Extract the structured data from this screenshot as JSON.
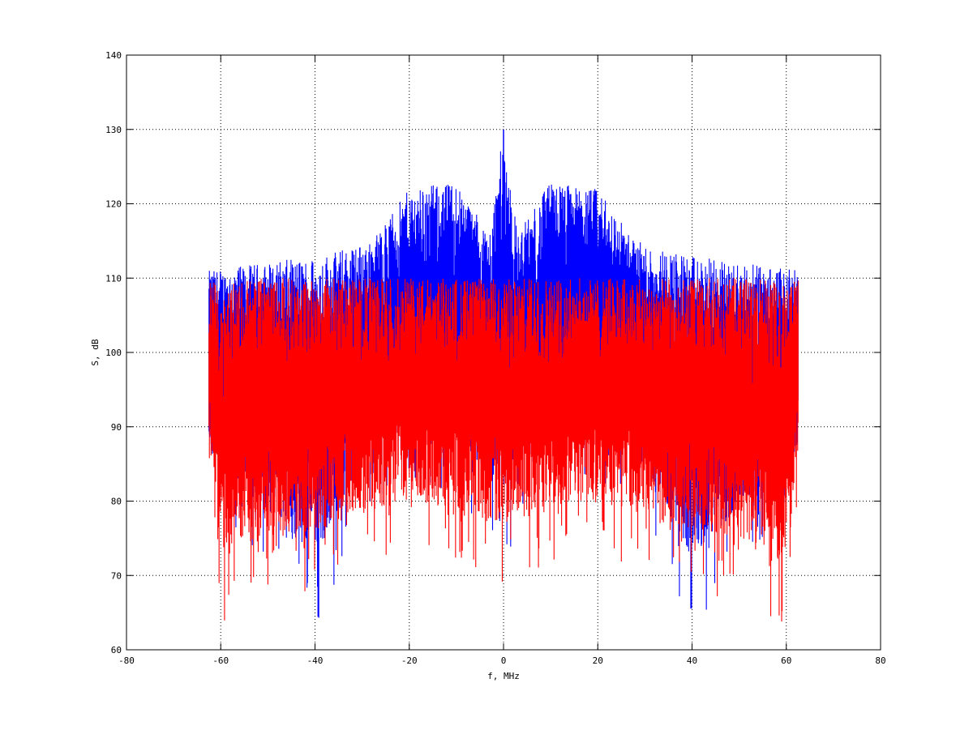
{
  "chart_data": {
    "type": "line",
    "title": "",
    "xlabel": "f, MHz",
    "ylabel": "S, dB",
    "xlim": [
      -80,
      80
    ],
    "ylim": [
      60,
      140
    ],
    "xticks": [
      -80,
      -60,
      -40,
      -20,
      0,
      20,
      40,
      60,
      80
    ],
    "yticks": [
      60,
      70,
      80,
      90,
      100,
      110,
      120,
      130,
      140
    ],
    "xtick_labels": [
      "-80",
      "-60",
      "-40",
      "-20",
      "0",
      "20",
      "40",
      "60",
      "80"
    ],
    "ytick_labels": [
      "60",
      "70",
      "80",
      "90",
      "100",
      "110",
      "120",
      "130",
      "140"
    ],
    "grid": true,
    "grid_style": "dotted",
    "x_range": [
      -62.5,
      62.5
    ],
    "series": [
      {
        "color": "#0000ff",
        "description_points": [
          {
            "x": -62.5,
            "y_low": 80,
            "y_high": 111
          },
          {
            "x": -40,
            "y_low": 62.5,
            "y_high": 113
          },
          {
            "x": -28,
            "y_low": 80,
            "y_high": 115
          },
          {
            "x": -20,
            "y_low": 82,
            "y_high": 122
          },
          {
            "x": -10,
            "y_low": 80,
            "y_high": 123
          },
          {
            "x": -3,
            "y_low": 76,
            "y_high": 116
          },
          {
            "x": 0,
            "y_low": 70.5,
            "y_high": 130
          },
          {
            "x": 3,
            "y_low": 76,
            "y_high": 116
          },
          {
            "x": 10,
            "y_low": 80,
            "y_high": 123
          },
          {
            "x": 20,
            "y_low": 82,
            "y_high": 122
          },
          {
            "x": 28,
            "y_low": 80,
            "y_high": 115
          },
          {
            "x": 40,
            "y_low": 62.5,
            "y_high": 113
          },
          {
            "x": 62.5,
            "y_low": 80,
            "y_high": 111
          }
        ]
      },
      {
        "color": "#ff0000",
        "description_points": [
          {
            "x": -62.5,
            "y_low": 80,
            "y_high": 110
          },
          {
            "x": -60,
            "y_low": 62,
            "y_high": 109
          },
          {
            "x": -55,
            "y_low": 65.5,
            "y_high": 110
          },
          {
            "x": -40,
            "y_low": 68,
            "y_high": 110
          },
          {
            "x": -20,
            "y_low": 73,
            "y_high": 110
          },
          {
            "x": 0,
            "y_low": 69,
            "y_high": 110
          },
          {
            "x": 20,
            "y_low": 73,
            "y_high": 110
          },
          {
            "x": 40,
            "y_low": 68,
            "y_high": 110
          },
          {
            "x": 55,
            "y_low": 65.5,
            "y_high": 110
          },
          {
            "x": 60,
            "y_low": 62,
            "y_high": 109
          },
          {
            "x": 62.5,
            "y_low": 80,
            "y_high": 110
          }
        ]
      }
    ]
  }
}
